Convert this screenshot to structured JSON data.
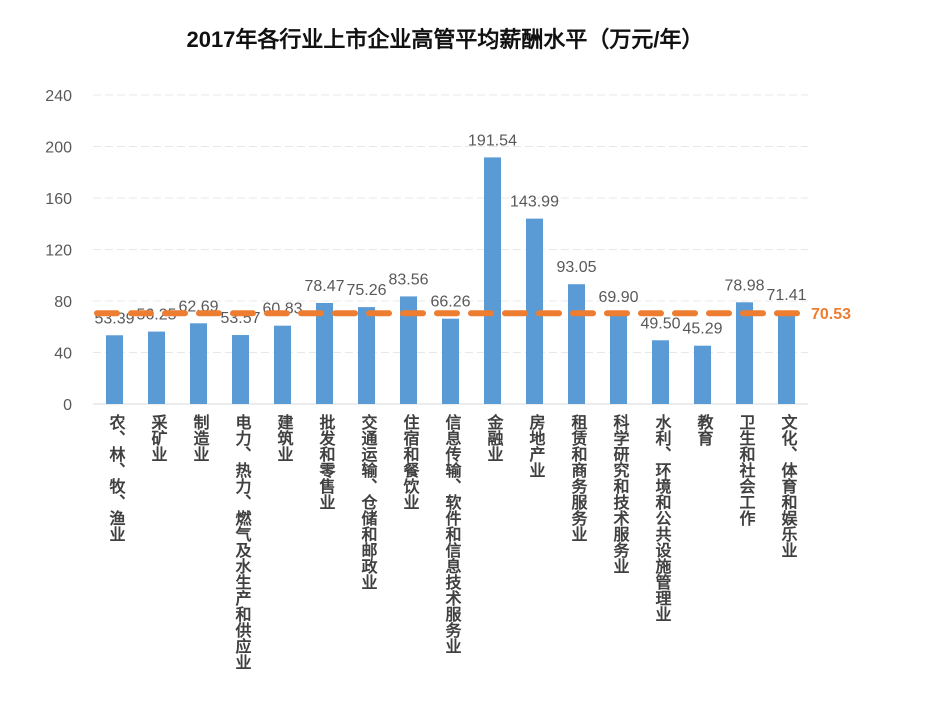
{
  "chart_data": {
    "type": "bar",
    "title": "2017年各行业上市企业高管平均薪酬水平（万元/年）",
    "xlabel": "",
    "ylabel": "",
    "ylim": [
      0,
      240
    ],
    "yticks": [
      0,
      40,
      80,
      120,
      160,
      200,
      240
    ],
    "grid": true,
    "categories": [
      "农、林、牧、渔业",
      "采矿业",
      "制造业",
      "电力、热力、燃气及水生产和供应业",
      "建筑业",
      "批发和零售业",
      "交通运输、仓储和邮政业",
      "住宿和餐饮业",
      "信息传输、软件和信息技术服务业",
      "金融业",
      "房地产业",
      "租赁和商务服务业",
      "科学研究和技术服务业",
      "水利、环境和公共设施管理业",
      "教育",
      "卫生和社会工作",
      "文化、体育和娱乐业"
    ],
    "values": [
      53.39,
      56.25,
      62.69,
      53.57,
      60.83,
      78.47,
      75.26,
      83.56,
      66.26,
      191.54,
      143.99,
      93.05,
      69.9,
      49.5,
      45.29,
      78.98,
      71.41
    ],
    "value_labels": [
      "53.39",
      "56.25",
      "62.69",
      "53.57",
      "60.83",
      "78.47",
      "75.26",
      "83.56",
      "66.26",
      "191.54",
      "143.99",
      "93.05",
      "69.90",
      "49.50",
      "45.29",
      "78.98",
      "71.41"
    ],
    "average": {
      "value": 70.53,
      "label": "70.53"
    },
    "colors": {
      "bar": "#5B9BD5",
      "average_line": "#ED7D31",
      "grid": "#E8E8E8"
    }
  }
}
